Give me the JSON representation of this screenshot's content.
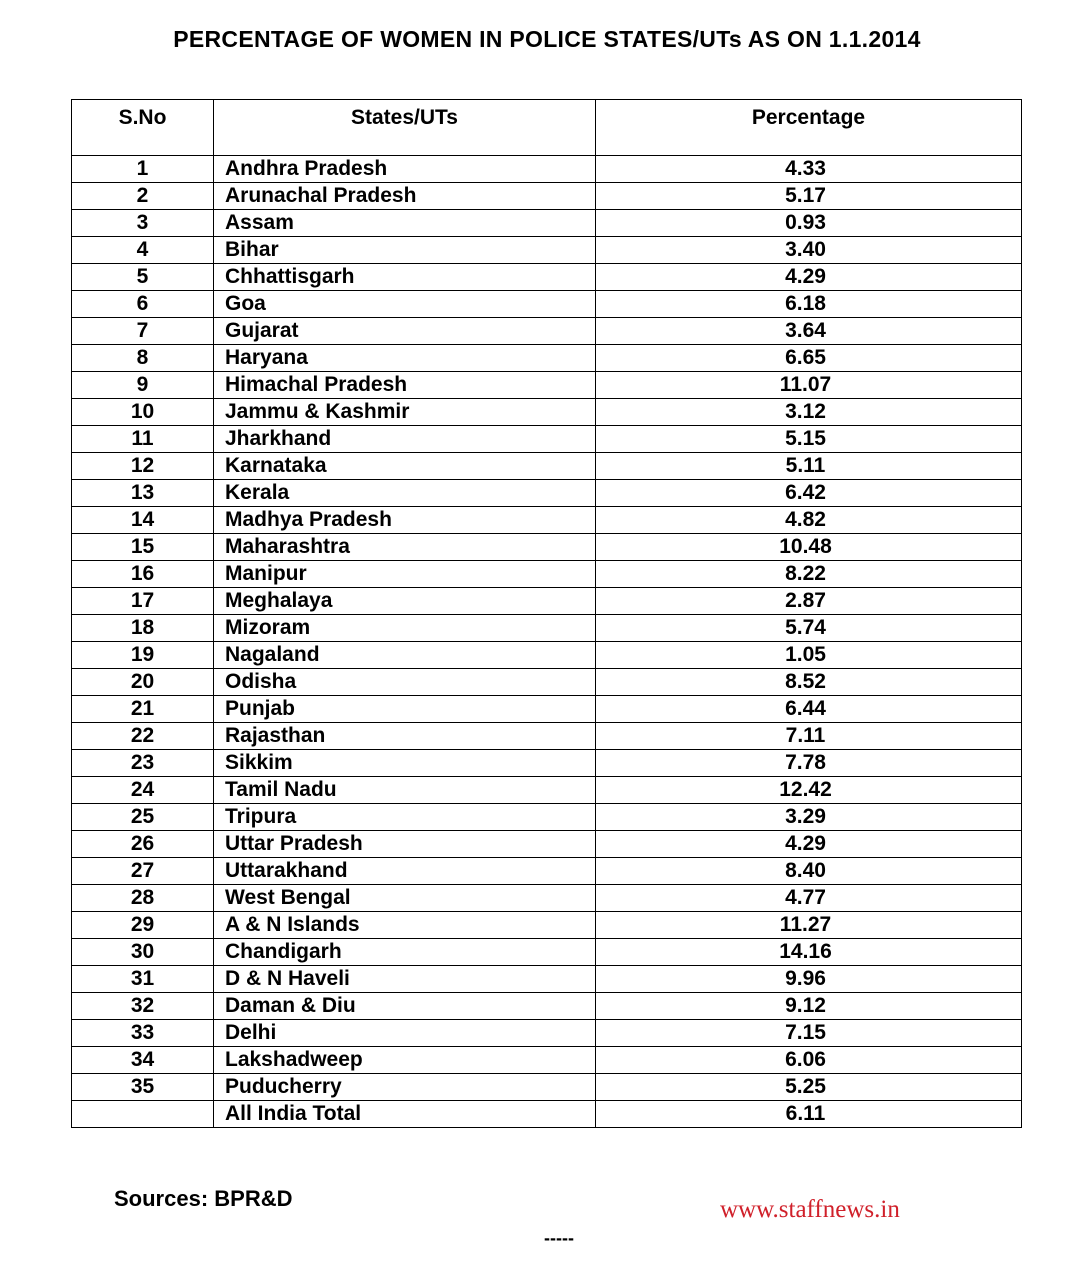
{
  "title": "PERCENTAGE OF WOMEN IN POLICE STATES/UTs AS ON 1.1.2014",
  "table": {
    "headers": [
      "S.No",
      "States/UTs",
      "Percentage"
    ],
    "rows": [
      [
        "1",
        "Andhra Pradesh",
        "4.33"
      ],
      [
        "2",
        "Arunachal Pradesh",
        "5.17"
      ],
      [
        "3",
        "Assam",
        "0.93"
      ],
      [
        "4",
        "Bihar",
        "3.40"
      ],
      [
        "5",
        "Chhattisgarh",
        "4.29"
      ],
      [
        "6",
        "Goa",
        "6.18"
      ],
      [
        "7",
        "Gujarat",
        "3.64"
      ],
      [
        "8",
        "Haryana",
        "6.65"
      ],
      [
        "9",
        "Himachal Pradesh",
        "11.07"
      ],
      [
        "10",
        "Jammu & Kashmir",
        "3.12"
      ],
      [
        "11",
        "Jharkhand",
        "5.15"
      ],
      [
        "12",
        "Karnataka",
        "5.11"
      ],
      [
        "13",
        "Kerala",
        "6.42"
      ],
      [
        "14",
        "Madhya Pradesh",
        "4.82"
      ],
      [
        "15",
        "Maharashtra",
        "10.48"
      ],
      [
        "16",
        "Manipur",
        "8.22"
      ],
      [
        "17",
        "Meghalaya",
        "2.87"
      ],
      [
        "18",
        "Mizoram",
        "5.74"
      ],
      [
        "19",
        "Nagaland",
        "1.05"
      ],
      [
        "20",
        "Odisha",
        "8.52"
      ],
      [
        "21",
        "Punjab",
        "6.44"
      ],
      [
        "22",
        "Rajasthan",
        "7.11"
      ],
      [
        "23",
        "Sikkim",
        "7.78"
      ],
      [
        "24",
        "Tamil Nadu",
        "12.42"
      ],
      [
        "25",
        "Tripura",
        "3.29"
      ],
      [
        "26",
        "Uttar Pradesh",
        "4.29"
      ],
      [
        "27",
        "Uttarakhand",
        "8.40"
      ],
      [
        "28",
        "West Bengal",
        "4.77"
      ],
      [
        "29",
        "A & N Islands",
        "11.27"
      ],
      [
        "30",
        "Chandigarh",
        "14.16"
      ],
      [
        "31",
        "D & N Haveli",
        "9.96"
      ],
      [
        "32",
        "Daman & Diu",
        "9.12"
      ],
      [
        "33",
        "Delhi",
        "7.15"
      ],
      [
        "34",
        "Lakshadweep",
        "6.06"
      ],
      [
        "35",
        "Puducherry",
        "5.25"
      ],
      [
        "",
        "All India Total",
        "6.11"
      ]
    ]
  },
  "sources": "Sources: BPR&D",
  "watermark": "www.staffnews.in",
  "end_mark": "-----",
  "colors": {
    "watermark": "#d0202a"
  }
}
